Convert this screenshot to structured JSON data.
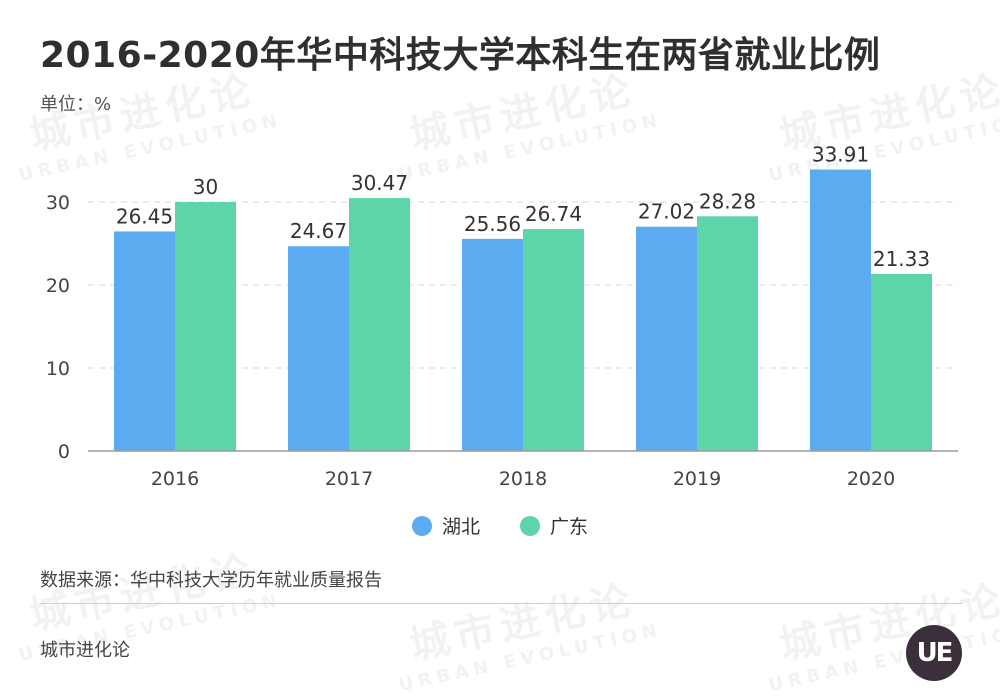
{
  "title": "2016-2020年华中科技大学本科生在两省就业比例",
  "unit_label": "单位：%",
  "source": "数据来源：华中科技大学历年就业质量报告",
  "brand": "城市进化论",
  "logo_text": "UE",
  "watermark": {
    "cn": "城市进化论",
    "en": "URBAN EVOLUTION"
  },
  "colors": {
    "hubei": "#5aabf0",
    "guangdong": "#5dd5a8"
  },
  "chart_data": {
    "type": "bar",
    "categories": [
      "2016",
      "2017",
      "2018",
      "2019",
      "2020"
    ],
    "series": [
      {
        "name": "湖北",
        "values": [
          26.45,
          24.67,
          25.56,
          27.02,
          33.91
        ]
      },
      {
        "name": "广东",
        "values": [
          30,
          30.47,
          26.74,
          28.28,
          21.33
        ]
      }
    ],
    "yticks": [
      0,
      10,
      20,
      30
    ],
    "ylim": [
      0,
      36
    ],
    "grid": true,
    "legend": "bottom"
  }
}
